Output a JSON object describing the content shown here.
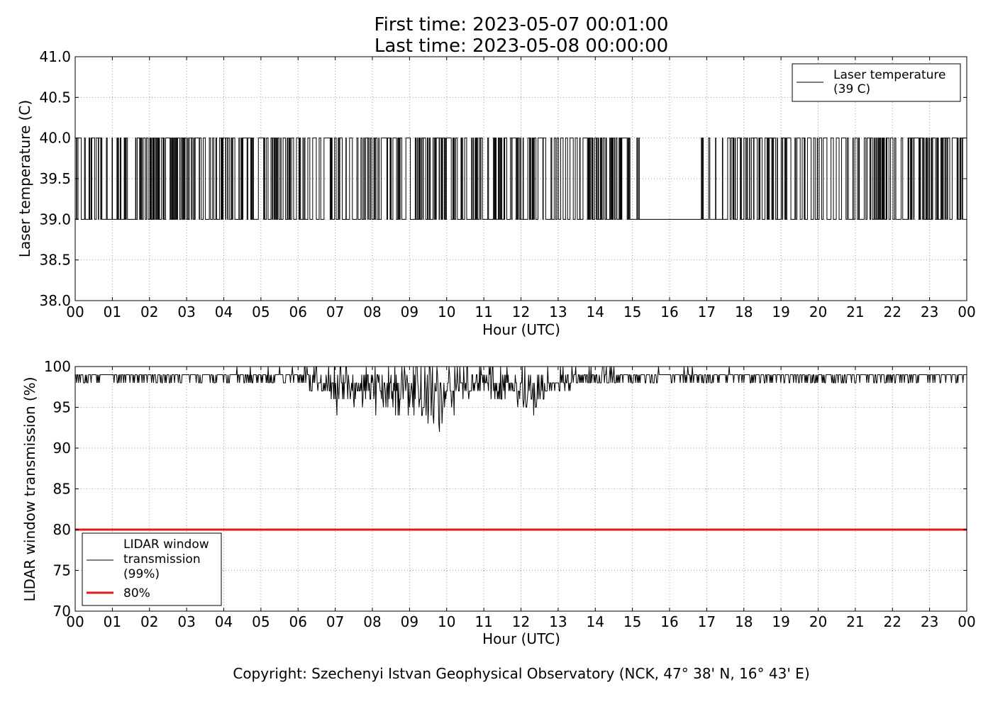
{
  "figure": {
    "title_lines": [
      "First time: 2023-05-07 00:01:00",
      "Last time: 2023-05-08 00:00:00"
    ],
    "copyright": "Copyright: Szechenyi Istvan Geophysical Observatory (NCK, 47° 38' N, 16° 43' E)"
  },
  "chart_data": [
    {
      "type": "line",
      "xlabel": "Hour (UTC)",
      "ylabel": "Laser temperature (C)",
      "xlim": [
        0,
        24
      ],
      "ylim": [
        38.0,
        41.0
      ],
      "x_tick_labels": [
        "00",
        "01",
        "02",
        "03",
        "04",
        "05",
        "06",
        "07",
        "08",
        "09",
        "10",
        "11",
        "12",
        "13",
        "14",
        "15",
        "16",
        "17",
        "18",
        "19",
        "20",
        "21",
        "22",
        "23",
        "00"
      ],
      "y_ticks": [
        38.0,
        38.5,
        39.0,
        39.5,
        40.0,
        40.5,
        41.0
      ],
      "y_tick_labels": [
        "38.0",
        "38.5",
        "39.0",
        "39.5",
        "40.0",
        "40.5",
        "41.0"
      ],
      "grid": true,
      "legend_position": "top-right",
      "legend": [
        {
          "label_lines": [
            "Laser temperature",
            "(39 C)"
          ],
          "color": "#000000"
        }
      ],
      "series": [
        {
          "color": "#000000",
          "levels": [
            39.0,
            40.0
          ],
          "x": [
            0.0,
            0.1,
            0.2,
            0.3,
            0.5,
            0.55,
            0.95,
            1.05,
            1.8,
            2.0,
            2.2,
            2.35,
            2.5,
            2.8,
            3.0,
            3.2,
            3.5,
            3.7,
            3.9,
            4.4,
            4.6,
            4.9,
            5.3,
            5.6,
            5.9,
            6.2,
            6.5,
            6.8,
            7.0,
            7.3,
            7.6,
            7.9,
            8.3,
            8.6,
            9.0,
            9.4,
            9.8,
            10.2,
            10.6,
            11.0,
            11.3,
            11.7,
            12.0,
            12.3,
            12.6,
            13.0,
            13.3,
            13.7,
            14.0,
            14.3,
            14.6,
            15.0,
            15.3,
            15.6,
            16.8,
            16.82,
            17.3,
            17.35,
            17.8,
            18.2,
            18.6,
            19.0,
            19.3,
            19.6,
            20.0,
            20.4,
            20.8,
            21.2,
            21.6,
            22.0,
            22.4,
            22.8,
            23.2,
            23.6,
            24.0
          ],
          "y": [
            39.5,
            39.6,
            39.5,
            39.4,
            39.5,
            39.5,
            39.0,
            39.5,
            39.5,
            39.4,
            39.5,
            39.5,
            39.5,
            39.6,
            39.6,
            39.5,
            39.6,
            39.5,
            39.5,
            39.6,
            39.6,
            39.5,
            39.5,
            39.5,
            39.5,
            39.5,
            39.5,
            39.5,
            39.5,
            39.5,
            39.5,
            39.5,
            39.6,
            39.6,
            39.5,
            39.5,
            39.5,
            39.5,
            39.4,
            39.5,
            39.4,
            39.5,
            39.5,
            39.5,
            39.5,
            39.5,
            39.4,
            39.5,
            39.5,
            39.5,
            39.5,
            39.3,
            39.0,
            39.0,
            39.0,
            39.3,
            39.0,
            39.2,
            39.6,
            39.6,
            39.5,
            39.5,
            39.2,
            39.5,
            39.5,
            39.5,
            39.5,
            39.4,
            39.5,
            39.5,
            39.4,
            39.5,
            39.5,
            39.5,
            39.5
          ]
        }
      ]
    },
    {
      "type": "line",
      "xlabel": "Hour (UTC)",
      "ylabel": "LIDAR window transmission (%)",
      "xlim": [
        0,
        24
      ],
      "ylim": [
        70,
        100
      ],
      "x_tick_labels": [
        "00",
        "01",
        "02",
        "03",
        "04",
        "05",
        "06",
        "07",
        "08",
        "09",
        "10",
        "11",
        "12",
        "13",
        "14",
        "15",
        "16",
        "17",
        "18",
        "19",
        "20",
        "21",
        "22",
        "23",
        "00"
      ],
      "y_ticks": [
        70,
        75,
        80,
        85,
        90,
        95,
        100
      ],
      "y_tick_labels": [
        "70",
        "75",
        "80",
        "85",
        "90",
        "95",
        "100"
      ],
      "grid": true,
      "legend_position": "bottom-left",
      "legend": [
        {
          "label_lines": [
            "LIDAR window",
            "transmission",
            "(99%)"
          ],
          "color": "#000000"
        },
        {
          "label_lines": [
            "80%"
          ],
          "color": "#e31a1c"
        }
      ],
      "series": [
        {
          "color": "#000000",
          "x": [
            0.0,
            0.5,
            1.0,
            1.5,
            2.0,
            2.5,
            3.0,
            3.5,
            4.0,
            4.3,
            4.6,
            5.0,
            5.3,
            5.6,
            6.0,
            6.3,
            6.6,
            7.0,
            7.2,
            7.5,
            7.8,
            8.0,
            8.3,
            8.6,
            8.9,
            9.2,
            9.5,
            9.8,
            10.0,
            10.3,
            10.6,
            11.0,
            11.3,
            11.6,
            12.0,
            12.3,
            12.6,
            13.0,
            13.5,
            14.0,
            14.5,
            15.0,
            15.5,
            16.0,
            16.5,
            17.0,
            17.5,
            18.0,
            18.5,
            19.0,
            19.5,
            20.0,
            20.5,
            21.0,
            21.5,
            22.0,
            22.5,
            23.0,
            23.5,
            24.0
          ],
          "y": [
            99,
            98.8,
            98.9,
            98.8,
            98.8,
            99,
            98.7,
            98.8,
            98.7,
            99,
            98.5,
            98.8,
            98.5,
            98.8,
            98.7,
            98.2,
            98.2,
            97.8,
            97.5,
            97.6,
            97.4,
            97.5,
            97.5,
            97.0,
            97.0,
            96.8,
            96.8,
            96.5,
            97.2,
            97.8,
            97.8,
            98.2,
            97.6,
            97.6,
            97.4,
            97.5,
            97.8,
            98.2,
            98.5,
            98.6,
            98.6,
            98.8,
            98.8,
            98.8,
            98.6,
            98.8,
            99,
            98.9,
            98.9,
            98.8,
            98.9,
            98.9,
            98.8,
            98.8,
            98.9,
            98.8,
            98.8,
            98.8,
            98.8,
            99
          ],
          "events": [
            {
              "x": 7.05,
              "y": 94
            },
            {
              "x": 8.1,
              "y": 94
            },
            {
              "x": 8.7,
              "y": 94
            },
            {
              "x": 9.8,
              "y": 92
            },
            {
              "x": 10.2,
              "y": 94
            },
            {
              "x": 12.35,
              "y": 94
            },
            {
              "x": 4.35,
              "y": 100
            },
            {
              "x": 5.5,
              "y": 100
            },
            {
              "x": 5.85,
              "y": 100
            },
            {
              "x": 15.7,
              "y": 100
            },
            {
              "x": 16.5,
              "y": 100
            },
            {
              "x": 17.6,
              "y": 100
            }
          ]
        },
        {
          "color": "#e31a1c",
          "x": [
            0,
            24
          ],
          "y": [
            80,
            80
          ]
        }
      ]
    }
  ]
}
